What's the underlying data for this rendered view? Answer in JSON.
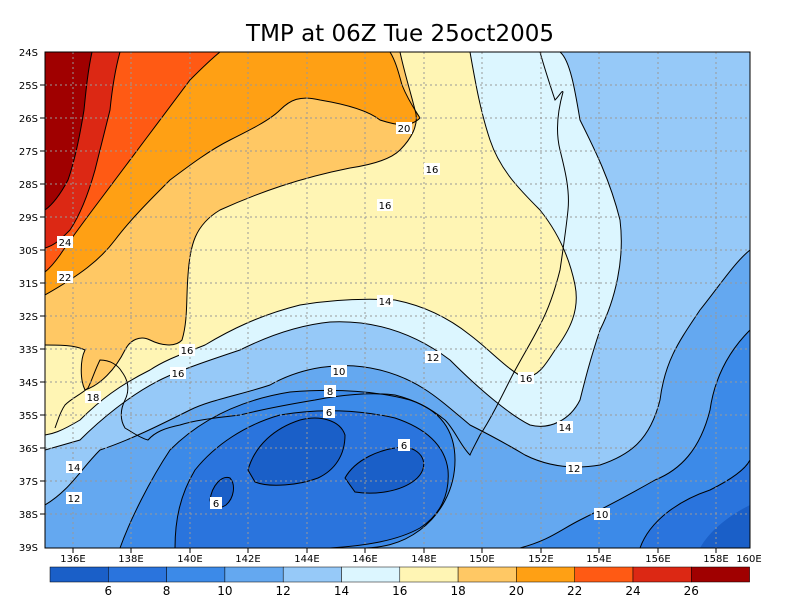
{
  "title": "TMP at 06Z Tue 25oct2005",
  "x_ticks": [
    "136E",
    "138E",
    "140E",
    "142E",
    "144E",
    "146E",
    "148E",
    "150E",
    "152E",
    "154E",
    "156E",
    "158E",
    "160E"
  ],
  "y_ticks": [
    "24S",
    "25S",
    "26S",
    "27S",
    "28S",
    "29S",
    "30S",
    "31S",
    "32S",
    "33S",
    "34S",
    "35S",
    "36S",
    "37S",
    "38S",
    "39S"
  ],
  "colorbar": {
    "labels": [
      "6",
      "8",
      "10",
      "12",
      "14",
      "16",
      "18",
      "20",
      "22",
      "24",
      "26"
    ],
    "colors": [
      "#1a5fc8",
      "#2a74dd",
      "#3c8ae8",
      "#64a8f0",
      "#96c9f8",
      "#dcf6ff",
      "#fff5b4",
      "#ffc864",
      "#ffa014",
      "#ff5a14",
      "#dc2814",
      "#a00000"
    ]
  },
  "contour_labels": [
    {
      "text": "20"
    },
    {
      "text": "16"
    },
    {
      "text": "16"
    },
    {
      "text": "24"
    },
    {
      "text": "22"
    },
    {
      "text": "14"
    },
    {
      "text": "16"
    },
    {
      "text": "12"
    },
    {
      "text": "16"
    },
    {
      "text": "10"
    },
    {
      "text": "18"
    },
    {
      "text": "16"
    },
    {
      "text": "8"
    },
    {
      "text": "6"
    },
    {
      "text": "6"
    },
    {
      "text": "14"
    },
    {
      "text": "14"
    },
    {
      "text": "12"
    },
    {
      "text": "12"
    },
    {
      "text": "6"
    },
    {
      "text": "10"
    }
  ]
}
